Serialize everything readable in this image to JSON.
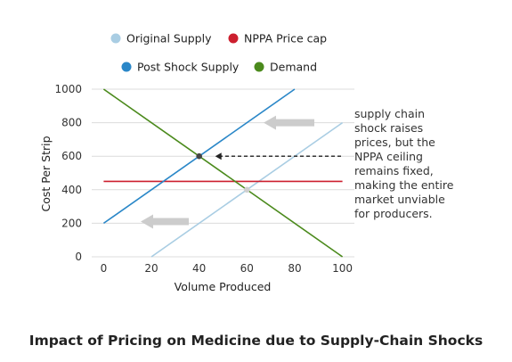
{
  "chart_data": {
    "type": "line",
    "xlabel": "Volume Produced",
    "ylabel": "Cost Per Strip",
    "xlim": [
      -5,
      105
    ],
    "ylim": [
      0,
      1000
    ],
    "xticks": [
      0,
      20,
      40,
      60,
      80,
      100
    ],
    "yticks": [
      0,
      200,
      400,
      600,
      800,
      1000
    ],
    "grid": "horizontal",
    "legend_placement": "top",
    "series": [
      {
        "name": "Original Supply",
        "color": "#a9cde3",
        "x": [
          20,
          100
        ],
        "y": [
          0,
          800
        ]
      },
      {
        "name": "NPPA Price cap",
        "color": "#cc1f2e",
        "x": [
          0,
          100
        ],
        "y": [
          450,
          450
        ]
      },
      {
        "name": "Post Shock Supply",
        "color": "#2a87c8",
        "x": [
          0,
          80
        ],
        "y": [
          200,
          1000
        ]
      },
      {
        "name": "Demand",
        "color": "#4b8a1c",
        "x": [
          0,
          100
        ],
        "y": [
          1000,
          0
        ]
      }
    ],
    "points": [
      {
        "x": 40,
        "y": 600,
        "color": "#444444"
      },
      {
        "x": 60,
        "y": 400,
        "color": "#cfcfcf"
      }
    ],
    "annotation_lines": [
      "supply chain",
      "shock raises",
      "prices, but the",
      "NPPA ceiling",
      "remains fixed,",
      "making the entire",
      "market unviable",
      "for producers."
    ]
  },
  "title": "Impact of Pricing on Medicine due to Supply-Chain Shocks",
  "colors": {
    "grid": "#dcdcdc",
    "shift_arrow": "#cccccc",
    "dashed_arrow": "#222222"
  }
}
